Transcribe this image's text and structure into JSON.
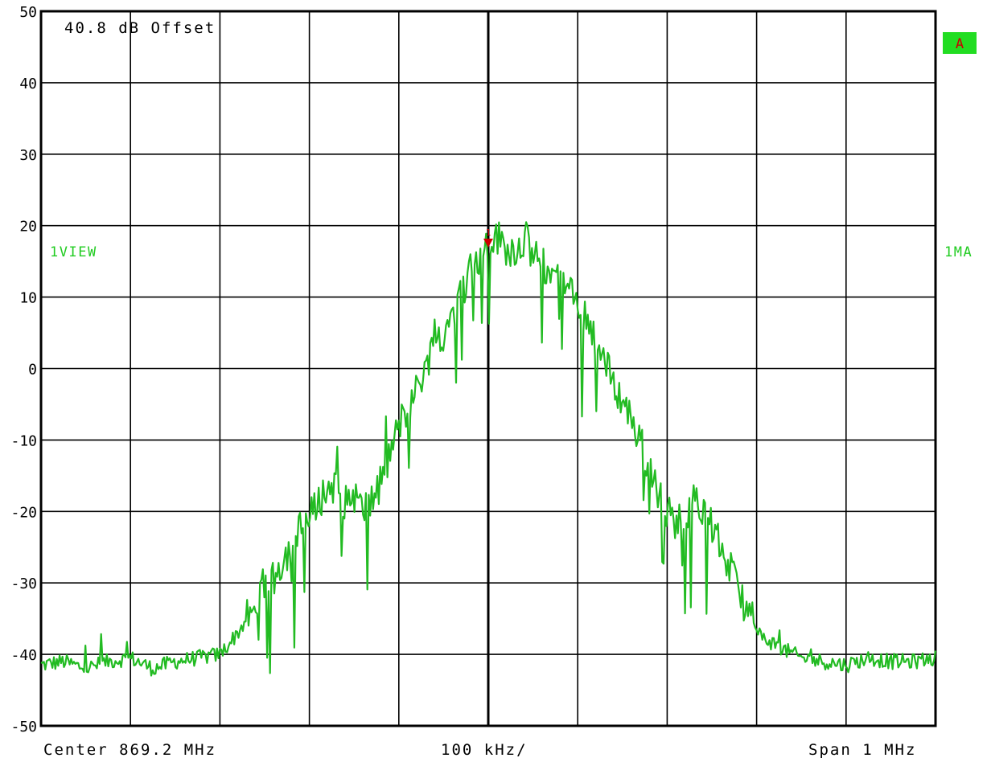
{
  "colors": {
    "background": "#ffffff",
    "grid": "#000000",
    "trace": "#22bb22",
    "marker": "#cc0000",
    "trace_label": "#22cc22",
    "badge_bg": "#22dd22",
    "badge_text": "#cc0000"
  },
  "annotations": {
    "offset": "40.8 dB Offset",
    "trace_mode_left": "1VIEW",
    "trace_mode_right": "1MA",
    "trace_badge": "A",
    "marker_label": "1"
  },
  "footer": {
    "center": "Center 869.2 MHz",
    "div": "100 kHz/",
    "span": "Span 1 MHz"
  },
  "chart_data": {
    "type": "line",
    "title": "",
    "xlabel": "",
    "ylabel": "",
    "xlim": [
      868.7,
      869.7
    ],
    "ylim": [
      -50,
      50
    ],
    "yticks": [
      "50",
      "40",
      "30",
      "20",
      "10",
      "0",
      "-10",
      "-20",
      "-30",
      "-40",
      "-50"
    ],
    "grid": true,
    "x_divisions": 10,
    "y_divisions": 10,
    "marker": {
      "label": "1",
      "x": 869.2,
      "y": 17.5
    },
    "series": [
      {
        "x": [
          868.7,
          868.725,
          868.75,
          868.775,
          868.8,
          868.825,
          868.85,
          868.875,
          868.9,
          868.91,
          868.92,
          868.93,
          868.94,
          868.95,
          868.96,
          868.97,
          868.98,
          868.99,
          869.0,
          869.01,
          869.02,
          869.03,
          869.04,
          869.05,
          869.06,
          869.07,
          869.08,
          869.09,
          869.1,
          869.11,
          869.12,
          869.13,
          869.14,
          869.15,
          869.16,
          869.17,
          869.18,
          869.19,
          869.2,
          869.21,
          869.22,
          869.23,
          869.24,
          869.25,
          869.26,
          869.27,
          869.28,
          869.29,
          869.3,
          869.31,
          869.32,
          869.33,
          869.34,
          869.35,
          869.36,
          869.37,
          869.38,
          869.39,
          869.4,
          869.41,
          869.42,
          869.43,
          869.44,
          869.45,
          869.46,
          869.47,
          869.48,
          869.49,
          869.5,
          869.525,
          869.55,
          869.575,
          869.6,
          869.625,
          869.65,
          869.675,
          869.7
        ],
        "values": [
          -41.5,
          -41.0,
          -42.0,
          -41.0,
          -40.5,
          -42.0,
          -41.0,
          -40.5,
          -40.0,
          -38.5,
          -37.0,
          -35.0,
          -33.0,
          -30.0,
          -28.5,
          -27.0,
          -24.5,
          -22.5,
          -21.0,
          -18.5,
          -17.0,
          -16.0,
          -19.0,
          -17.5,
          -20.0,
          -18.5,
          -16.5,
          -12.0,
          -8.0,
          -5.5,
          -3.0,
          0.5,
          3.5,
          5.0,
          8.0,
          10.5,
          13.5,
          15.0,
          17.0,
          18.5,
          17.0,
          16.5,
          18.5,
          16.0,
          14.5,
          13.5,
          12.0,
          11.0,
          8.5,
          7.5,
          4.0,
          1.0,
          -2.0,
          -4.5,
          -7.0,
          -10.0,
          -14.5,
          -17.5,
          -20.0,
          -21.5,
          -20.5,
          -18.5,
          -20.0,
          -22.0,
          -25.0,
          -28.0,
          -31.0,
          -34.0,
          -37.0,
          -39.0,
          -40.5,
          -41.0,
          -41.5,
          -40.5,
          -41.0,
          -41.0,
          -40.5
        ]
      }
    ]
  }
}
